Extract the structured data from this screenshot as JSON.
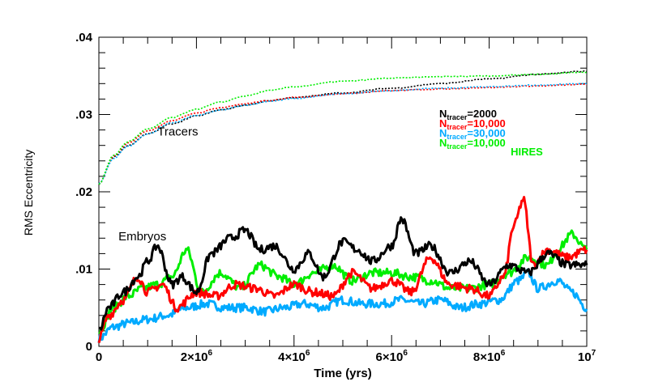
{
  "chart_data": {
    "type": "line",
    "title": "",
    "xlabel": "Time (yrs)",
    "ylabel": "RMS Eccentricity",
    "xlim": [
      0,
      10000000
    ],
    "ylim": [
      0,
      0.04
    ],
    "x_ticks": [
      {
        "value": 0,
        "label": "0",
        "exp": ""
      },
      {
        "value": 2000000,
        "label": "2×10",
        "exp": "6"
      },
      {
        "value": 4000000,
        "label": "4×10",
        "exp": "6"
      },
      {
        "value": 6000000,
        "label": "6×10",
        "exp": "6"
      },
      {
        "value": 8000000,
        "label": "8×10",
        "exp": "6"
      },
      {
        "value": 10000000,
        "label": "10",
        "exp": "7"
      }
    ],
    "y_ticks": [
      {
        "value": 0,
        "label": "0"
      },
      {
        "value": 0.01,
        "label": ".01"
      },
      {
        "value": 0.02,
        "label": ".02"
      },
      {
        "value": 0.03,
        "label": ".03"
      },
      {
        "value": 0.04,
        "label": ".04"
      }
    ],
    "annotations": [
      {
        "text": "Tracers",
        "x": 1200000,
        "y": 0.0273
      },
      {
        "text": "Embryos",
        "x": 400000,
        "y": 0.0137
      }
    ],
    "legend": {
      "placement": "right",
      "entries": [
        {
          "prefix": "N",
          "sub": "tracer",
          "value": "=2000",
          "color": "#000000"
        },
        {
          "prefix": "N",
          "sub": "tracer",
          "value": "=10,000",
          "color": "#ff0000"
        },
        {
          "prefix": "N",
          "sub": "tracer",
          "value": "=30,000",
          "color": "#00aaff"
        },
        {
          "prefix": "N",
          "sub": "tracer",
          "value": "=10,000",
          "color": "#00ee00",
          "extra": "HIRES"
        }
      ]
    },
    "series": [
      {
        "group": "tracers",
        "style": "dotted",
        "color": "#000000",
        "x": [
          0,
          300000,
          600000,
          1000000,
          1500000,
          2000000,
          2500000,
          3000000,
          3500000,
          4000000,
          5000000,
          6000000,
          7000000,
          8000000,
          9000000,
          10000000
        ],
        "y": [
          0.021,
          0.0245,
          0.026,
          0.0275,
          0.0288,
          0.0298,
          0.0306,
          0.0312,
          0.0318,
          0.0322,
          0.0328,
          0.0334,
          0.034,
          0.0346,
          0.0352,
          0.0356
        ]
      },
      {
        "group": "tracers",
        "style": "dotted",
        "color": "#ff0000",
        "x": [
          0,
          300000,
          600000,
          1000000,
          1500000,
          2000000,
          2500000,
          3000000,
          3500000,
          4000000,
          5000000,
          6000000,
          7000000,
          8000000,
          9000000,
          10000000
        ],
        "y": [
          0.021,
          0.0246,
          0.0263,
          0.0279,
          0.0292,
          0.0302,
          0.0309,
          0.0314,
          0.0318,
          0.0322,
          0.0327,
          0.0331,
          0.0333,
          0.0335,
          0.0337,
          0.0339
        ]
      },
      {
        "group": "tracers",
        "style": "dotted",
        "color": "#00aaff",
        "x": [
          0,
          300000,
          600000,
          1000000,
          1500000,
          2000000,
          2500000,
          3000000,
          3500000,
          4000000,
          5000000,
          6000000,
          7000000,
          8000000,
          9000000,
          10000000
        ],
        "y": [
          0.021,
          0.0243,
          0.0259,
          0.0275,
          0.0289,
          0.0299,
          0.0306,
          0.0312,
          0.0317,
          0.0321,
          0.0327,
          0.0331,
          0.0334,
          0.0336,
          0.0338,
          0.034
        ]
      },
      {
        "group": "tracers",
        "style": "dotted",
        "color": "#00ee00",
        "x": [
          0,
          300000,
          600000,
          1000000,
          1500000,
          2000000,
          2500000,
          3000000,
          3500000,
          4000000,
          5000000,
          6000000,
          7000000,
          8000000,
          9000000,
          10000000
        ],
        "y": [
          0.021,
          0.0247,
          0.0265,
          0.0281,
          0.0296,
          0.0307,
          0.0316,
          0.0324,
          0.0331,
          0.0336,
          0.0343,
          0.0347,
          0.0349,
          0.035,
          0.0352,
          0.0355
        ]
      },
      {
        "group": "embryos",
        "style": "solid",
        "color": "#000000",
        "x": [
          0,
          200000,
          500000,
          800000,
          1000000,
          1200000,
          1500000,
          1700000,
          2000000,
          2300000,
          2700000,
          3000000,
          3300000,
          3600000,
          4000000,
          4300000,
          4600000,
          5000000,
          5300000,
          5600000,
          6000000,
          6200000,
          6500000,
          6800000,
          7200000,
          7600000,
          8000000,
          8400000,
          8800000,
          9200000,
          9600000,
          10000000
        ],
        "y": [
          0.002,
          0.005,
          0.007,
          0.009,
          0.011,
          0.013,
          0.008,
          0.009,
          0.007,
          0.012,
          0.014,
          0.015,
          0.0125,
          0.013,
          0.01,
          0.012,
          0.009,
          0.0135,
          0.0125,
          0.011,
          0.013,
          0.0165,
          0.012,
          0.013,
          0.0095,
          0.011,
          0.008,
          0.0105,
          0.0095,
          0.012,
          0.0105,
          0.0105
        ]
      },
      {
        "group": "embryos",
        "style": "solid",
        "color": "#ff0000",
        "x": [
          0,
          200000,
          500000,
          800000,
          1000000,
          1300000,
          1600000,
          2000000,
          2400000,
          2800000,
          3200000,
          3600000,
          4000000,
          4400000,
          4800000,
          5200000,
          5600000,
          6000000,
          6400000,
          6800000,
          7200000,
          7600000,
          8000000,
          8300000,
          8500000,
          8700000,
          8900000,
          9200000,
          9600000,
          10000000
        ],
        "y": [
          0.001,
          0.004,
          0.006,
          0.009,
          0.007,
          0.008,
          0.005,
          0.007,
          0.0065,
          0.008,
          0.0075,
          0.0065,
          0.008,
          0.007,
          0.0065,
          0.0095,
          0.0075,
          0.0085,
          0.007,
          0.0115,
          0.008,
          0.0075,
          0.0065,
          0.009,
          0.0155,
          0.019,
          0.0105,
          0.0125,
          0.0115,
          0.0125
        ]
      },
      {
        "group": "embryos",
        "style": "solid",
        "color": "#00aaff",
        "x": [
          0,
          300000,
          600000,
          1000000,
          1400000,
          1800000,
          2200000,
          2600000,
          3000000,
          3400000,
          3800000,
          4200000,
          4600000,
          5000000,
          5400000,
          5800000,
          6200000,
          6600000,
          7000000,
          7400000,
          7800000,
          8200000,
          8600000,
          8800000,
          9000000,
          9400000,
          9700000,
          10000000
        ],
        "y": [
          0.001,
          0.0025,
          0.003,
          0.0035,
          0.004,
          0.005,
          0.0055,
          0.005,
          0.005,
          0.0045,
          0.005,
          0.0055,
          0.005,
          0.006,
          0.0055,
          0.0055,
          0.006,
          0.0055,
          0.006,
          0.005,
          0.0055,
          0.006,
          0.0085,
          0.0095,
          0.0075,
          0.0085,
          0.007,
          0.005
        ]
      },
      {
        "group": "embryos",
        "style": "solid",
        "color": "#00ee00",
        "x": [
          0,
          300000,
          600000,
          900000,
          1200000,
          1500000,
          1800000,
          2100000,
          2500000,
          2900000,
          3300000,
          3700000,
          4000000,
          4400000,
          4800000,
          5200000,
          5600000,
          6000000,
          6400000,
          6800000,
          7200000,
          7600000,
          8000000,
          8400000,
          8800000,
          9200000,
          9400000,
          9700000,
          10000000
        ],
        "y": [
          0.002,
          0.005,
          0.0065,
          0.0075,
          0.008,
          0.009,
          0.0125,
          0.007,
          0.0095,
          0.0075,
          0.0105,
          0.009,
          0.008,
          0.0095,
          0.0105,
          0.0085,
          0.0095,
          0.0095,
          0.009,
          0.0085,
          0.0075,
          0.0075,
          0.008,
          0.0095,
          0.0115,
          0.0105,
          0.0125,
          0.0145,
          0.0125
        ]
      }
    ]
  }
}
